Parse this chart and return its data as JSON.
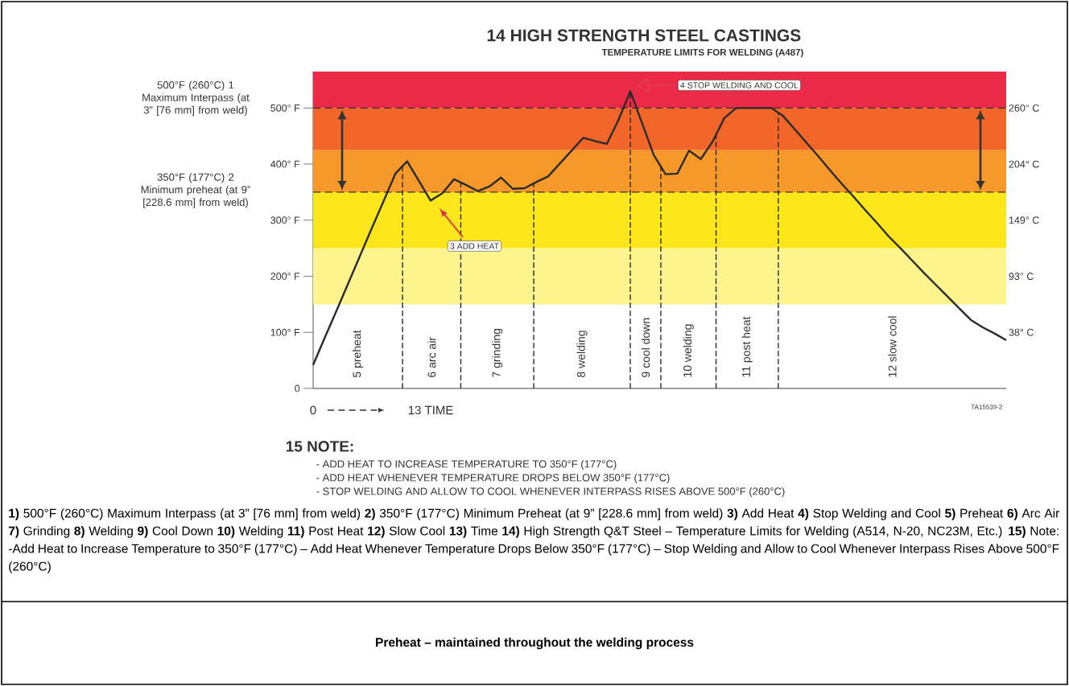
{
  "chart_data": {
    "type": "line",
    "title": "14 HIGH STRENGTH STEEL CASTINGS",
    "subtitle": "TEMPERATURE LIMITS FOR WELDING (A487)",
    "xlabel": "13 TIME",
    "categories": [
      null,
      null,
      null,
      null,
      null,
      null,
      null,
      null,
      null,
      null,
      null,
      null,
      null,
      null,
      null,
      null,
      null,
      null,
      null,
      null,
      null,
      null,
      null,
      null,
      null,
      null,
      null,
      null,
      null,
      null,
      null,
      null,
      null,
      null,
      null,
      null,
      null,
      null,
      null,
      null,
      null,
      null,
      null,
      null,
      null,
      null,
      null,
      null,
      null,
      null,
      null,
      null,
      null,
      null,
      null,
      null,
      null,
      null,
      null,
      null
    ],
    "values": [
      42,
      91,
      139,
      188,
      237,
      286,
      334,
      383,
      405,
      370,
      335,
      348,
      373,
      363,
      352,
      360,
      376,
      356,
      357,
      368,
      378,
      401,
      424,
      447,
      441,
      436,
      479,
      530,
      473,
      416,
      382,
      383,
      424,
      409,
      440,
      482,
      500,
      500,
      500,
      500,
      486,
      462,
      438,
      414,
      389,
      365,
      342,
      318,
      295,
      271,
      250,
      228,
      206,
      185,
      164,
      143,
      122,
      109,
      98,
      86
    ],
    "color": "#2b2b2b",
    "ylim": [
      0,
      565
    ],
    "yticks": [
      0,
      {
        "value": 100,
        "label": "100° F"
      },
      {
        "value": 200,
        "label": "200° F"
      },
      {
        "value": 300,
        "label": "300° F"
      },
      {
        "value": 400,
        "label": "400° F"
      },
      {
        "value": 500,
        "label": "500° F"
      }
    ],
    "y2lim": [
      -17.8,
      296.1
    ],
    "y2ticks": [
      {
        "value": 37.8,
        "label": "38° C"
      },
      {
        "value": 93.3,
        "label": "93° C"
      },
      {
        "value": 148.9,
        "label": "149° C"
      },
      {
        "value": 204.4,
        "label": "204° C"
      },
      {
        "value": 260,
        "label": "260° C"
      }
    ],
    "ref_lines": [
      {
        "axis": "y",
        "value": 500,
        "line_style": "dashed",
        "color": "#333333"
      },
      {
        "axis": "y",
        "value": 350,
        "line_style": "dashed",
        "color": "#333333"
      }
    ],
    "bands": [
      {
        "axis": "y",
        "from": 500,
        "to": 565,
        "color": "#ea2a47"
      },
      {
        "axis": "y",
        "from": 425,
        "to": 500,
        "color": "#f2662a"
      },
      {
        "axis": "y",
        "from": 350,
        "to": 425,
        "color": "#f6982a"
      },
      {
        "axis": "y",
        "from": 250,
        "to": 350,
        "color": "#fbe61c"
      },
      {
        "axis": "y",
        "from": 150,
        "to": 250,
        "color": "#fdf48e"
      }
    ],
    "annotations": [
      "3 ADD HEAT",
      "4 STOP WELDING AND COOL",
      "0",
      "TA15539-2",
      "15 NOTE:",
      "- ADD HEAT TO INCREASE TEMPERATURE TO 350°F (177°C)",
      "- ADD HEAT WHENEVER TEMPERATURE DROPS BELOW 350°F (177°C)",
      "- STOP WELDING AND ALLOW TO COOL WHENEVER INTERPASS RISES ABOVE 500°F (260°C)",
      "**1)** 500°F (260°C) Maximum Interpass (at 3” [76 mm] from weld) **2)** 350°F (177°C) Minimum Preheat (at 9” [228.6 mm] from weld) **3)** Add Heat **4)** Stop Welding and Cool **5)** Preheat **6)** Arc Air **7)** Grinding **8)** Welding **9)** Cool Down **10)** Welding **11)** Post Heat **12)** Slow Cool **13)** Time **14)** High Strength Q&T Steel – Temperature Limits for Welding (A514, N-20, NC23M, Etc.) **15)** Note: -Add Heat to Increase Temperature to 350°F (177°C) – Add Heat Whenever Temperature Drops Below 350°F (177°C) – Stop Welding and Allow to Cool Whenever Interpass Rises Above 500°F (260°C)",
      "Preheat – maintained throughout the welding process",
      "5 preheat",
      "6 arc air",
      "7 grinding",
      "8 welding",
      "9 cool down",
      "10 welding",
      "11 post heat",
      "12 slow cool",
      "500°F (260°C) 1 Maximum Interpass (at 3” [76 mm] from weld)",
      "350°F (177°C) 2 Minimum preheat (at 9” [228.6 mm] from weld)"
    ]
  }
}
